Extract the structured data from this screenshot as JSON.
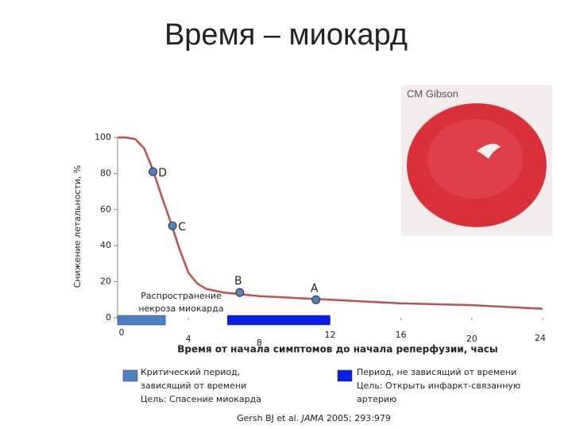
{
  "chart_data": {
    "type": "line",
    "title": "Время – миокард",
    "y_label": "Снижение летальности, %",
    "x_label": "Время от начала симптомов до начала реперфузии, часы",
    "xlim": [
      0,
      24
    ],
    "ylim": [
      0,
      100
    ],
    "xticks": [
      0,
      4,
      8,
      12,
      16,
      20,
      24
    ],
    "yticks": [
      0,
      20,
      40,
      60,
      80,
      100
    ],
    "series": [
      {
        "color": "#c0504d",
        "x": [
          0,
          0.5,
          1,
          1.5,
          2,
          2.5,
          3,
          3.5,
          4,
          4.5,
          5,
          6,
          7,
          8,
          10,
          12,
          16,
          20,
          24
        ],
        "values": [
          100,
          100,
          99,
          94,
          82,
          67,
          53,
          38,
          25,
          19,
          16,
          14,
          13,
          12,
          11,
          10,
          8,
          7,
          5
        ]
      }
    ],
    "points": {
      "color": "#4f81bd",
      "labels": [
        "D",
        "C",
        "B",
        "A"
      ],
      "x": [
        2,
        3.1,
        6.9,
        11.2
      ],
      "values": [
        81,
        51,
        14,
        10
      ]
    },
    "annotation": [
      "Распространение",
      "некроза миокарда"
    ],
    "periods": [
      {
        "start": 0,
        "end": 2.7,
        "color": "#4f7fc4"
      },
      {
        "start": 6.2,
        "end": 12,
        "color": "#0a1ee6"
      }
    ],
    "legend": [
      {
        "color": "#4f7fc4",
        "lines": [
          "Критический период,",
          "зависящий от времени",
          "Цель: Спасение миокарда"
        ]
      },
      {
        "color": "#0a1ee6",
        "lines": [
          "Период, не зависящий от времени",
          "Цель: Открыть инфаркт-связанную",
          "артерию"
        ]
      }
    ],
    "image_credit": "CM Gibson",
    "source": [
      "Gersh BJ et al. ",
      "JAMA",
      " 2005; 293:979"
    ]
  }
}
